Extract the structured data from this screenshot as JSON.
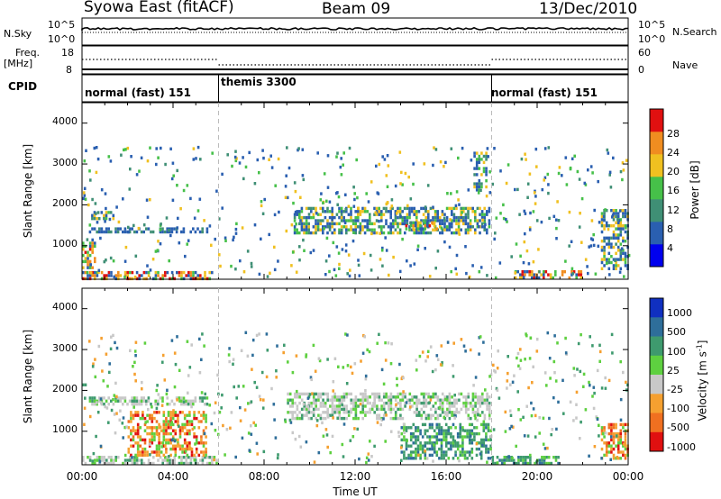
{
  "header": {
    "station": "Syowa East (fitACF)",
    "beam": "Beam 09",
    "date": "13/Dec/2010"
  },
  "status_panels": {
    "nsky_label": "N.Sky",
    "nsky_ticks": [
      "10^5",
      "10^0"
    ],
    "nsearch_label": "N.Search",
    "nsearch_ticks": [
      "10^5",
      "10^0"
    ],
    "freq_label": "Freq.",
    "freq_unit": "[MHz]",
    "freq_ticks": [
      "18",
      "8"
    ],
    "nave_label": "Nave",
    "nave_ticks": [
      "60",
      "0"
    ],
    "cpid_label": "CPID"
  },
  "cpid_segments": [
    {
      "label": "normal (fast) 151",
      "start_h": 0,
      "end_h": 6
    },
    {
      "label": "themis 3300",
      "start_h": 6,
      "end_h": 18
    },
    {
      "label": "normal (fast) 151",
      "start_h": 18,
      "end_h": 24
    }
  ],
  "chart_data": [
    {
      "type": "heatmap",
      "title": "",
      "xlabel": "",
      "ylabel": "Slant Range [km]",
      "xlim": [
        0,
        24
      ],
      "ylim": [
        180,
        4500
      ],
      "yticks": [
        "1000",
        "2000",
        "3000",
        "4000"
      ],
      "colorbar": {
        "label": "Power [dB]",
        "ticks": [
          "4",
          "8",
          "12",
          "16",
          "20",
          "24",
          "28"
        ],
        "colors": [
          "#0000ee",
          "#2a5fb0",
          "#3f8f75",
          "#46c049",
          "#f0c020",
          "#f08d20",
          "#e01010"
        ]
      },
      "echo_regions": [
        {
          "t0": 0.0,
          "t1": 5.8,
          "r0": 180,
          "r1": 380,
          "level": "high"
        },
        {
          "t0": 0.0,
          "t1": 0.6,
          "r0": 400,
          "r1": 1100,
          "level": "high"
        },
        {
          "t0": 0.4,
          "t1": 1.4,
          "r0": 1650,
          "r1": 1850,
          "level": "medium"
        },
        {
          "t0": 0.3,
          "t1": 5.6,
          "r0": 1300,
          "r1": 1450,
          "level": "low"
        },
        {
          "t0": 9.3,
          "t1": 18.0,
          "r0": 1300,
          "r1": 1950,
          "level": "medium"
        },
        {
          "t0": 14.2,
          "t1": 15.6,
          "r0": 1400,
          "r1": 1600,
          "level": "high"
        },
        {
          "t0": 17.2,
          "t1": 17.8,
          "r0": 2300,
          "r1": 3300,
          "level": "medium"
        },
        {
          "t0": 19.0,
          "t1": 22.0,
          "r0": 180,
          "r1": 400,
          "level": "high"
        },
        {
          "t0": 22.8,
          "t1": 24.0,
          "r0": 400,
          "r1": 1900,
          "level": "medium"
        }
      ]
    },
    {
      "type": "heatmap",
      "title": "",
      "xlabel": "Time UT",
      "ylabel": "Slant Range [km]",
      "xlim": [
        0,
        24
      ],
      "ylim": [
        180,
        4500
      ],
      "xticks": [
        "00:00",
        "04:00",
        "08:00",
        "12:00",
        "16:00",
        "20:00",
        "00:00"
      ],
      "yticks": [
        "1000",
        "2000",
        "3000",
        "4000"
      ],
      "colorbar": {
        "label": "Velocity [m s",
        "label_superscript": "-1",
        "label_close": "]",
        "ticks": [
          "1000",
          "500",
          "100",
          "25",
          "-25",
          "-100",
          "-500",
          "-1000"
        ],
        "colors": [
          "#1030c0",
          "#2e6e9a",
          "#3e9a6e",
          "#5ed040",
          "#c8c8c8",
          "#f5a030",
          "#f07020",
          "#e01010"
        ]
      },
      "echo_regions": [
        {
          "t0": 0.0,
          "t1": 6.0,
          "r0": 180,
          "r1": 400,
          "level": "near-zero"
        },
        {
          "t0": 2.0,
          "t1": 5.5,
          "r0": 400,
          "r1": 1500,
          "level": "negative"
        },
        {
          "t0": 0.3,
          "t1": 5.5,
          "r0": 1600,
          "r1": 1850,
          "level": "near-zero"
        },
        {
          "t0": 9.0,
          "t1": 18.0,
          "r0": 1300,
          "r1": 1950,
          "level": "near-zero"
        },
        {
          "t0": 14.0,
          "t1": 18.0,
          "r0": 300,
          "r1": 1200,
          "level": "positive"
        },
        {
          "t0": 18.0,
          "t1": 21.0,
          "r0": 180,
          "r1": 400,
          "level": "positive"
        },
        {
          "t0": 22.8,
          "t1": 24.0,
          "r0": 300,
          "r1": 1200,
          "level": "negative"
        }
      ]
    }
  ]
}
